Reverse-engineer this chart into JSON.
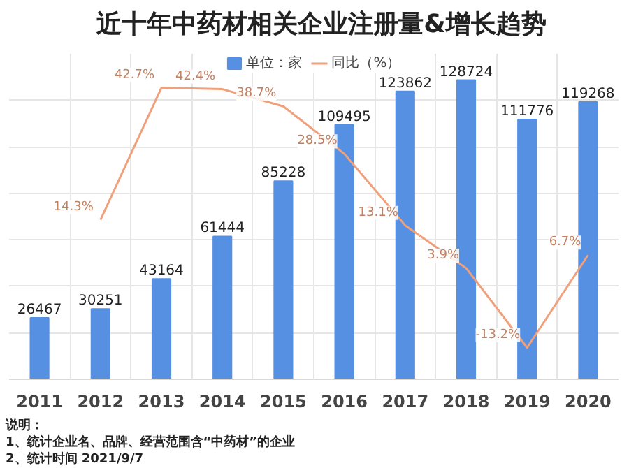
{
  "chart_data": {
    "type": "bar",
    "title": "近十年中药材相关企业注册量&增长趋势",
    "categories": [
      "2011",
      "2012",
      "2013",
      "2014",
      "2015",
      "2016",
      "2017",
      "2018",
      "2019",
      "2020"
    ],
    "series": [
      {
        "name": "单位：家",
        "color": "#5590e3",
        "values": [
          26467,
          30251,
          43164,
          61444,
          85228,
          109495,
          123862,
          128724,
          111776,
          119268
        ]
      },
      {
        "name": "同比（%）",
        "type": "line",
        "axis": "y2",
        "color": "#f0a07a",
        "values": [
          null,
          14.3,
          42.7,
          42.4,
          38.7,
          28.5,
          13.1,
          3.9,
          -13.2,
          6.7
        ],
        "value_labels": [
          null,
          "14.3%",
          "42.7%",
          "42.4%",
          "38.7%",
          "28.5%",
          "13.1%",
          "3.9%",
          "-13.2%",
          "6.7%"
        ]
      }
    ],
    "data_labels": true,
    "ylim": [
      0,
      140000
    ],
    "yticks": [
      {
        "value": 0,
        "label": null
      },
      {
        "value": 20000,
        "label": null
      },
      {
        "value": 40000,
        "label": null
      },
      {
        "value": 60000,
        "label": null
      },
      {
        "value": 80000,
        "label": null
      },
      {
        "value": 100000,
        "label": null
      },
      {
        "value": 120000,
        "label": null
      }
    ],
    "y2lim": [
      -20,
      50
    ],
    "tick_labels": "x",
    "grid": true,
    "legend": "top",
    "annotations": [
      "说明：",
      "1、统计企业名、品牌、经营范围含“中药材”的企业",
      "2、统计时间 2021/9/7"
    ]
  }
}
